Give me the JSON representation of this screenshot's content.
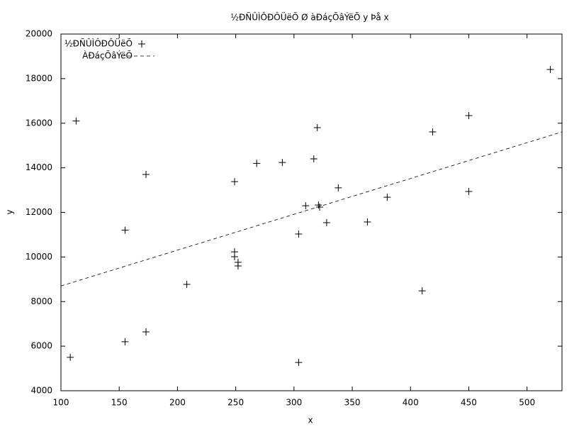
{
  "chart_data": {
    "type": "scatter",
    "title": "½ĐÑÛÌÔĐÔÜëÕ Ø àĐáçÕâÝëÕ y Þå x",
    "x_label": "x",
    "y_label": "y",
    "xlim": [
      100,
      530
    ],
    "ylim": [
      4000,
      20000
    ],
    "xticks": [
      100,
      150,
      200,
      250,
      300,
      350,
      400,
      450,
      500
    ],
    "yticks": [
      4000,
      6000,
      8000,
      10000,
      12000,
      14000,
      16000,
      18000,
      20000
    ],
    "legend": "upper left",
    "series": [
      {
        "name": "½ĐÑÛÌÔĐÔÜëÕ",
        "color": "#000000",
        "marker": "plus",
        "x": [
          108,
          113,
          155,
          155,
          173,
          173,
          208,
          249,
          249,
          249,
          252,
          252,
          268,
          290,
          304,
          304,
          310,
          317,
          320,
          321,
          322,
          328,
          338,
          363,
          380,
          410,
          419,
          450,
          450,
          520
        ],
        "values": [
          5500,
          16100,
          11200,
          6200,
          13700,
          6640,
          8770,
          13380,
          10230,
          10010,
          9760,
          9600,
          14200,
          14240,
          11030,
          5270,
          12300,
          14400,
          15800,
          12330,
          12240,
          11540,
          13100,
          11570,
          12680,
          8480,
          15610,
          16340,
          12940,
          18410
        ]
      },
      {
        "name": "ÀĐáçÕâÝëÕ",
        "color": "#000000",
        "marker": "dashed-line",
        "x": [
          100,
          530
        ],
        "values": [
          8700,
          15610
        ]
      }
    ]
  }
}
